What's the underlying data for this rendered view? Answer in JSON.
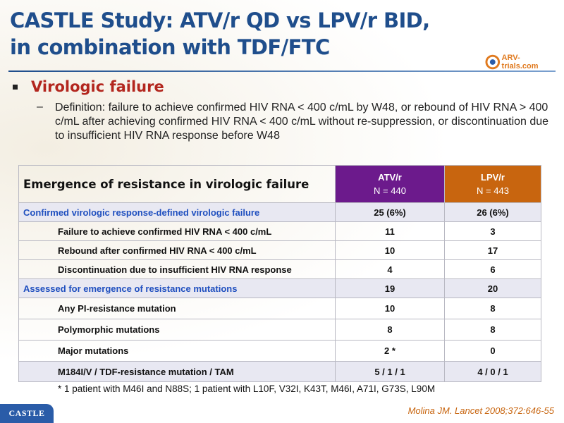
{
  "slide": {
    "title_line1": "CASTLE Study: ATV/r QD vs LPV/r BID,",
    "title_line2": "in combination with TDF/FTC",
    "logo_text": "ARV-trials.com",
    "heading": "Virologic failure",
    "dash": "–",
    "definition": "Definition: failure to achieve confirmed HIV RNA < 400 c/mL by W48, or rebound of HIV RNA > 400 c/mL after achieving confirmed HIV RNA < 400 c/mL without re-suppression, or discontinuation due to insufficient HIV RNA response before W48",
    "footnote": "* 1 patient with M46I and N88S; 1 patient with L10F, V32I, K43T, M46I, A71I, G73S, L90M",
    "citation": "Molina JM. Lancet 2008;372:646-55",
    "tag": "CASTLE",
    "colors": {
      "title": "#1f4e8c",
      "heading": "#b3261e",
      "atv": "#6c1a8c",
      "lpv": "#c8650f",
      "group_text": "#1f4fbf"
    }
  },
  "table": {
    "header": {
      "label": "Emergence of resistance in virologic failure",
      "atv_name": "ATV/r",
      "atv_n": "N = 440",
      "lpv_name": "LPV/r",
      "lpv_n": "N = 443"
    },
    "rows": [
      {
        "label": "Confirmed virologic response-defined virologic failure",
        "atv": "25 (6%)",
        "lpv": "26 (6%)"
      },
      {
        "label": "Failure to achieve confirmed HIV RNA < 400 c/mL",
        "atv": "11",
        "lpv": "3"
      },
      {
        "label": "Rebound after confirmed HIV RNA < 400 c/mL",
        "atv": "10",
        "lpv": "17"
      },
      {
        "label": "Discontinuation due to insufficient HIV RNA response",
        "atv": "4",
        "lpv": "6"
      },
      {
        "label": "Assessed for emergence of resistance mutations",
        "atv": "19",
        "lpv": "20"
      },
      {
        "label": "Any PI-resistance mutation",
        "atv": "10",
        "lpv": "8"
      },
      {
        "label": "Polymorphic mutations",
        "atv": "8",
        "lpv": "8"
      },
      {
        "label": "Major mutations",
        "atv": "2 *",
        "lpv": "0"
      },
      {
        "label": "M184I/V / TDF-resistance mutation / TAM",
        "atv": "5 / 1 / 1",
        "lpv": "4 / 0 / 1"
      }
    ]
  }
}
